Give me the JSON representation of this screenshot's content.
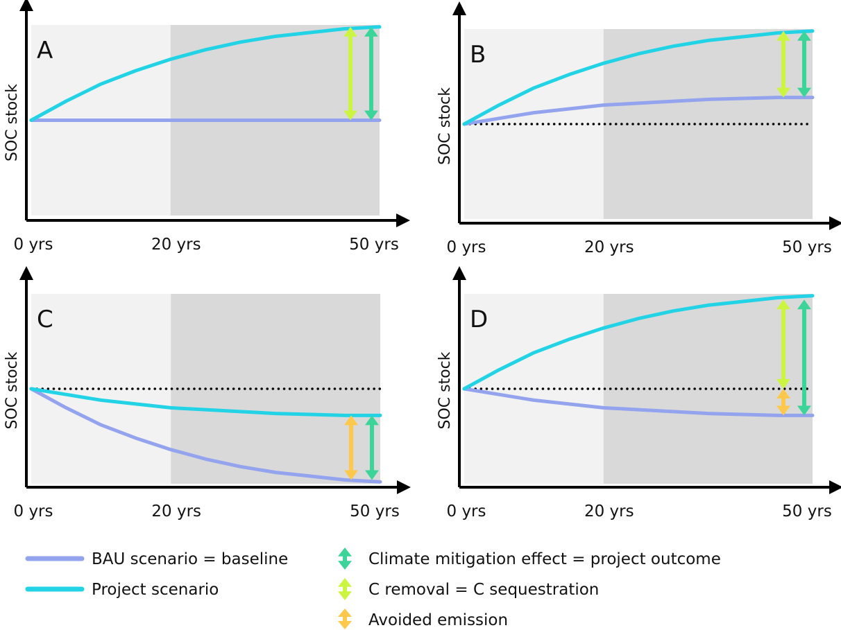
{
  "colors": {
    "bau": "#93a3ee",
    "project": "#22d3e6",
    "mitigation": "#3dd49a",
    "removal": "#ccf542",
    "avoided": "#fdc84b",
    "bg_early": "#f2f2f2",
    "bg_late": "#d9d9d9"
  },
  "chart_data": [
    {
      "type": "line",
      "panel_label": "A",
      "ylabel": "SOC stock",
      "x_ticks": [
        "0 yrs",
        "20 yrs",
        "50 yrs"
      ],
      "x": [
        0,
        5,
        10,
        15,
        20,
        25,
        30,
        35,
        40,
        45,
        50
      ],
      "xlim": [
        0,
        50
      ],
      "ylim": [
        0,
        1
      ],
      "reference_line": null,
      "series": [
        {
          "key": "bau",
          "values": [
            0.5,
            0.5,
            0.5,
            0.5,
            0.5,
            0.5,
            0.5,
            0.5,
            0.5,
            0.5,
            0.5
          ]
        },
        {
          "key": "project",
          "values": [
            0.5,
            0.6,
            0.69,
            0.76,
            0.82,
            0.87,
            0.91,
            0.94,
            0.96,
            0.98,
            0.99
          ]
        }
      ],
      "arrows": [
        {
          "type": "removal",
          "x": 45,
          "from": 0.5,
          "to": 0.99
        },
        {
          "type": "mitigation",
          "x": 47.5,
          "from": 0.5,
          "to": 0.99
        }
      ]
    },
    {
      "type": "line",
      "panel_label": "B",
      "ylabel": "SOC stock",
      "x_ticks": [
        "0 yrs",
        "20 yrs",
        "50 yrs"
      ],
      "x": [
        0,
        5,
        10,
        15,
        20,
        25,
        30,
        35,
        40,
        45,
        50
      ],
      "xlim": [
        0,
        50
      ],
      "ylim": [
        0,
        1
      ],
      "reference_line": 0.5,
      "series": [
        {
          "key": "bau",
          "values": [
            0.5,
            0.53,
            0.56,
            0.58,
            0.6,
            0.61,
            0.62,
            0.63,
            0.635,
            0.64,
            0.64
          ]
        },
        {
          "key": "project",
          "values": [
            0.5,
            0.6,
            0.69,
            0.76,
            0.82,
            0.87,
            0.91,
            0.94,
            0.96,
            0.98,
            0.99
          ]
        }
      ],
      "arrows": [
        {
          "type": "removal",
          "x": 45,
          "from": 0.64,
          "to": 0.99
        },
        {
          "type": "mitigation",
          "x": 47.5,
          "from": 0.64,
          "to": 0.99
        }
      ]
    },
    {
      "type": "line",
      "panel_label": "C",
      "ylabel": "SOC stock",
      "x_ticks": [
        "0 yrs",
        "20 yrs",
        "50 yrs"
      ],
      "x": [
        0,
        5,
        10,
        15,
        20,
        25,
        30,
        35,
        40,
        45,
        50
      ],
      "xlim": [
        0,
        50
      ],
      "ylim": [
        0,
        1
      ],
      "reference_line": 0.5,
      "series": [
        {
          "key": "bau",
          "values": [
            0.5,
            0.4,
            0.31,
            0.24,
            0.18,
            0.13,
            0.09,
            0.06,
            0.04,
            0.02,
            0.01
          ]
        },
        {
          "key": "project",
          "values": [
            0.5,
            0.47,
            0.44,
            0.42,
            0.4,
            0.39,
            0.38,
            0.37,
            0.365,
            0.36,
            0.36
          ]
        }
      ],
      "arrows": [
        {
          "type": "avoided",
          "x": 45,
          "from": 0.02,
          "to": 0.36
        },
        {
          "type": "mitigation",
          "x": 47.5,
          "from": 0.02,
          "to": 0.36
        }
      ]
    },
    {
      "type": "line",
      "panel_label": "D",
      "ylabel": "SOC stock",
      "x_ticks": [
        "0 yrs",
        "20 yrs",
        "50 yrs"
      ],
      "x": [
        0,
        5,
        10,
        15,
        20,
        25,
        30,
        35,
        40,
        45,
        50
      ],
      "xlim": [
        0,
        50
      ],
      "ylim": [
        0,
        1
      ],
      "reference_line": 0.5,
      "series": [
        {
          "key": "bau",
          "values": [
            0.5,
            0.47,
            0.44,
            0.42,
            0.4,
            0.39,
            0.38,
            0.37,
            0.365,
            0.36,
            0.36
          ]
        },
        {
          "key": "project",
          "values": [
            0.5,
            0.6,
            0.69,
            0.76,
            0.82,
            0.87,
            0.91,
            0.94,
            0.96,
            0.98,
            0.99
          ]
        }
      ],
      "arrows": [
        {
          "type": "removal",
          "x": 45,
          "from": 0.5,
          "to": 0.97
        },
        {
          "type": "avoided",
          "x": 45,
          "from": 0.36,
          "to": 0.5
        },
        {
          "type": "mitigation",
          "x": 47.5,
          "from": 0.36,
          "to": 0.97
        }
      ]
    }
  ],
  "legend": {
    "bau_label": "BAU scenario = baseline",
    "project_label": "Project scenario",
    "mitigation_label": "Climate mitigation effect = project outcome",
    "removal_label": "C removal = C sequestration",
    "avoided_label": "Avoided emission"
  }
}
